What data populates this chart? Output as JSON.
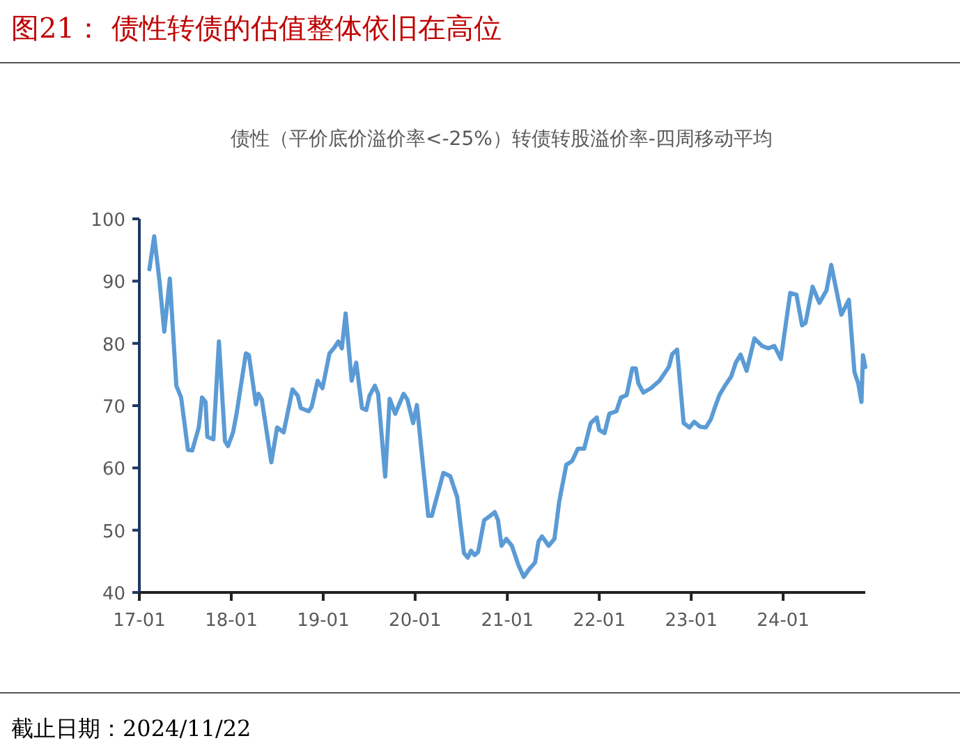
{
  "chart_data": {
    "type": "line",
    "title": "图21：  债性转债的估值整体依旧在高位",
    "subtitle": "债性（平价底价溢价率<-25%）转债转股溢价率-四周移动平均",
    "annotations": [
      "截止日期：2024/11/22"
    ],
    "color": "#5b9bd5",
    "x": [
      "2017-02-10",
      "2017-03-01",
      "2017-03-22",
      "2017-04-10",
      "2017-05-02",
      "2017-05-28",
      "2017-06-16",
      "2017-07-13",
      "2017-07-30",
      "2017-08-25",
      "2017-09-07",
      "2017-09-21",
      "2017-09-28",
      "2017-10-22",
      "2017-11-13",
      "2017-12-07",
      "2017-12-19",
      "2018-01-08",
      "2018-01-22",
      "2018-02-28",
      "2018-03-12",
      "2018-04-09",
      "2018-04-19",
      "2018-05-02",
      "2018-06-09",
      "2018-07-02",
      "2018-07-28",
      "2018-09-01",
      "2018-09-22",
      "2018-10-04",
      "2018-11-04",
      "2018-11-16",
      "2018-12-10",
      "2018-12-29",
      "2019-01-26",
      "2019-02-14",
      "2019-03-02",
      "2019-03-16",
      "2019-03-31",
      "2019-04-24",
      "2019-05-12",
      "2019-06-04",
      "2019-06-21",
      "2019-07-04",
      "2019-07-25",
      "2019-08-07",
      "2019-09-04",
      "2019-09-22",
      "2019-10-14",
      "2019-11-16",
      "2019-12-01",
      "2019-12-24",
      "2020-01-08",
      "2020-01-30",
      "2020-02-22",
      "2020-03-07",
      "2020-04-22",
      "2020-05-19",
      "2020-06-16",
      "2020-07-13",
      "2020-07-28",
      "2020-08-10",
      "2020-08-24",
      "2020-09-07",
      "2020-10-01",
      "2020-10-25",
      "2020-11-12",
      "2020-11-25",
      "2020-12-09",
      "2020-12-28",
      "2021-01-19",
      "2021-02-13",
      "2021-03-07",
      "2021-03-28",
      "2021-04-21",
      "2021-05-05",
      "2021-05-19",
      "2021-06-14",
      "2021-07-07",
      "2021-07-26",
      "2021-08-23",
      "2021-09-15",
      "2021-10-08",
      "2021-11-02",
      "2021-11-28",
      "2021-12-22",
      "2022-01-01",
      "2022-01-22",
      "2022-02-10",
      "2022-03-10",
      "2022-03-28",
      "2022-04-20",
      "2022-05-12",
      "2022-05-26",
      "2022-06-05",
      "2022-06-25",
      "2022-07-25",
      "2022-08-28",
      "2022-10-04",
      "2022-10-18",
      "2022-11-06",
      "2022-12-02",
      "2022-12-25",
      "2023-01-13",
      "2023-02-06",
      "2023-02-28",
      "2023-03-20",
      "2023-04-04",
      "2023-04-23",
      "2023-05-15",
      "2023-06-09",
      "2023-06-27",
      "2023-07-16",
      "2023-08-09",
      "2023-09-09",
      "2023-10-09",
      "2023-11-03",
      "2023-11-27",
      "2023-12-23",
      "2024-01-29",
      "2024-02-23",
      "2024-03-16",
      "2024-03-30",
      "2024-04-27",
      "2024-05-24",
      "2024-06-21",
      "2024-07-10",
      "2024-08-19",
      "2024-09-18",
      "2024-10-10",
      "2024-10-25",
      "2024-11-07",
      "2024-11-13",
      "2024-11-22"
    ],
    "values": [
      91.9,
      97.2,
      90.0,
      81.9,
      90.4,
      73.2,
      71.3,
      62.9,
      62.8,
      66.5,
      71.3,
      70.6,
      65.0,
      64.6,
      80.3,
      64.3,
      63.5,
      65.7,
      68.7,
      78.4,
      78.1,
      70.2,
      71.9,
      71.0,
      60.9,
      66.5,
      65.7,
      72.6,
      71.6,
      69.6,
      69.1,
      69.8,
      74.0,
      72.8,
      78.4,
      79.3,
      80.3,
      79.2,
      84.8,
      74.0,
      76.9,
      69.6,
      69.3,
      71.6,
      73.2,
      71.9,
      58.6,
      71.1,
      68.7,
      71.9,
      71.0,
      67.2,
      70.1,
      61.3,
      52.3,
      52.3,
      59.2,
      58.7,
      55.3,
      46.3,
      45.6,
      46.7,
      46.0,
      46.5,
      51.6,
      52.3,
      52.9,
      51.6,
      47.5,
      48.6,
      47.5,
      44.5,
      42.5,
      43.7,
      44.8,
      48.2,
      49.0,
      47.5,
      48.6,
      54.6,
      60.5,
      61.1,
      63.1,
      63.1,
      67.2,
      68.1,
      66.1,
      65.6,
      68.7,
      69.1,
      71.3,
      71.7,
      76.0,
      76.0,
      73.6,
      72.1,
      72.8,
      74.0,
      76.2,
      78.3,
      79.0,
      67.2,
      66.5,
      67.4,
      66.6,
      66.5,
      67.8,
      69.6,
      71.7,
      73.2,
      74.7,
      76.9,
      78.2,
      75.6,
      80.8,
      79.6,
      79.2,
      79.6,
      77.5,
      88.1,
      87.8,
      82.9,
      83.3,
      89.1,
      86.5,
      88.5,
      92.6,
      84.6,
      87.0,
      75.4,
      73.6,
      70.6,
      78.1,
      76.2
    ],
    "xlim": [
      "2017-01-01",
      "2024-11-22"
    ],
    "xticks": [
      {
        "value": "2017-01-01",
        "label": "17-01"
      },
      {
        "value": "2018-01-01",
        "label": "18-01"
      },
      {
        "value": "2019-01-01",
        "label": "19-01"
      },
      {
        "value": "2020-01-01",
        "label": "20-01"
      },
      {
        "value": "2021-01-01",
        "label": "21-01"
      },
      {
        "value": "2022-01-01",
        "label": "22-01"
      },
      {
        "value": "2023-01-01",
        "label": "23-01"
      },
      {
        "value": "2024-01-01",
        "label": "24-01"
      }
    ],
    "ylim": [
      40,
      100
    ],
    "yticks": [
      40,
      50,
      60,
      70,
      80,
      90,
      100
    ]
  }
}
